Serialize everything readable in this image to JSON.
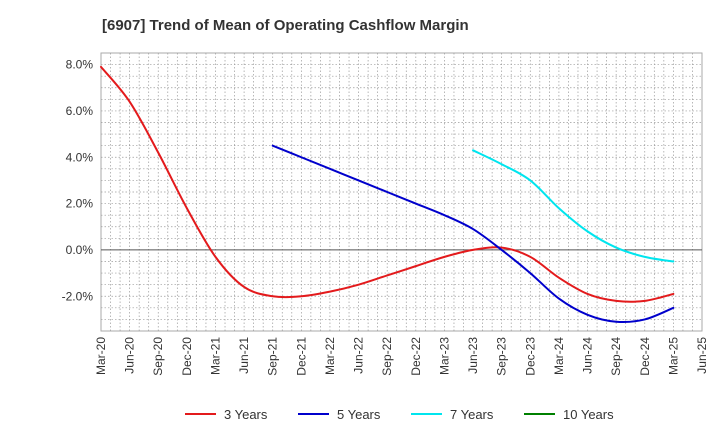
{
  "chart_data": {
    "type": "line",
    "title": "[6907]  Trend of Mean of Operating Cashflow Margin",
    "xlabel": "",
    "ylabel": "",
    "x_ticks": [
      "Mar-20",
      "Jun-20",
      "Sep-20",
      "Dec-20",
      "Mar-21",
      "Jun-21",
      "Sep-21",
      "Dec-21",
      "Mar-22",
      "Jun-22",
      "Sep-22",
      "Dec-22",
      "Mar-23",
      "Jun-23",
      "Sep-23",
      "Dec-23",
      "Mar-24",
      "Jun-24",
      "Sep-24",
      "Dec-24",
      "Mar-25",
      "Jun-25"
    ],
    "y_ticks": [
      "8.0%",
      "6.0%",
      "4.0%",
      "2.0%",
      "0.0%",
      "-2.0%"
    ],
    "y_tick_values": [
      8,
      6,
      4,
      2,
      0,
      -2
    ],
    "ylim": [
      -3.5,
      8.5
    ],
    "y_unit": "%",
    "grid": true,
    "legend_position": "bottom",
    "series": [
      {
        "name": "3 Years",
        "color": "#e31a1c",
        "x": [
          "Mar-20",
          "Jun-20",
          "Sep-20",
          "Dec-20",
          "Mar-21",
          "Jun-21",
          "Sep-21",
          "Dec-21",
          "Mar-22",
          "Jun-22",
          "Sep-22",
          "Dec-22",
          "Mar-23",
          "Jun-23",
          "Sep-23",
          "Dec-23",
          "Mar-24",
          "Jun-24",
          "Sep-24",
          "Dec-24",
          "Mar-25"
        ],
        "values": [
          7.9,
          6.4,
          4.2,
          1.8,
          -0.3,
          -1.6,
          -2.0,
          -2.0,
          -1.8,
          -1.5,
          -1.1,
          -0.7,
          -0.3,
          0.0,
          0.1,
          -0.3,
          -1.2,
          -1.9,
          -2.2,
          -2.2,
          -1.9
        ]
      },
      {
        "name": "5 Years",
        "color": "#0000cc",
        "x": [
          "Sep-21",
          "Dec-21",
          "Mar-22",
          "Jun-22",
          "Sep-22",
          "Dec-22",
          "Mar-23",
          "Jun-23",
          "Sep-23",
          "Dec-23",
          "Mar-24",
          "Jun-24",
          "Sep-24",
          "Dec-24",
          "Mar-25"
        ],
        "values": [
          4.5,
          4.0,
          3.5,
          3.0,
          2.5,
          2.0,
          1.5,
          0.9,
          0.0,
          -1.0,
          -2.1,
          -2.8,
          -3.1,
          -3.0,
          -2.5
        ]
      },
      {
        "name": "7 Years",
        "color": "#00e5ee",
        "x": [
          "Jun-23",
          "Sep-23",
          "Dec-23",
          "Mar-24",
          "Jun-24",
          "Sep-24",
          "Dec-24",
          "Mar-25"
        ],
        "values": [
          4.3,
          3.7,
          3.0,
          1.8,
          0.8,
          0.1,
          -0.3,
          -0.5
        ]
      },
      {
        "name": "10 Years",
        "color": "#008000",
        "x": [],
        "values": []
      }
    ]
  }
}
